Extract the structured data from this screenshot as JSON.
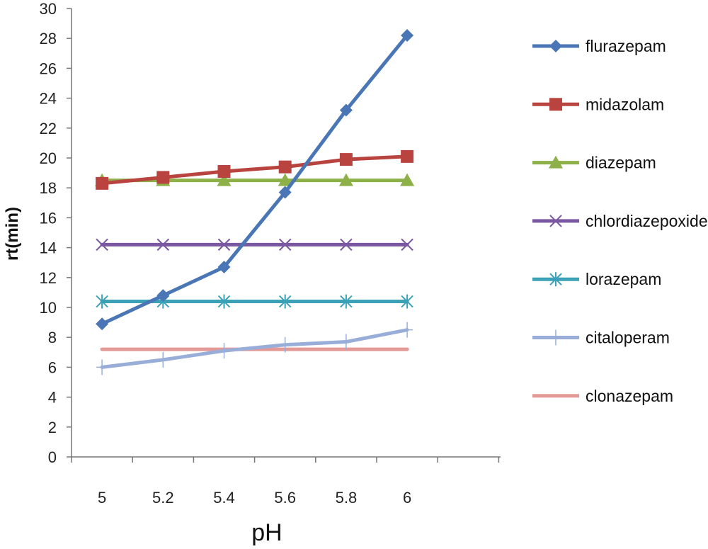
{
  "chart_data": {
    "type": "line",
    "xlabel": "pH",
    "ylabel": "rt(min)",
    "x": [
      5,
      5.2,
      5.4,
      5.6,
      5.8,
      6
    ],
    "ylim": [
      0,
      30
    ],
    "yticks": [
      0,
      2,
      4,
      6,
      8,
      10,
      12,
      14,
      16,
      18,
      20,
      22,
      24,
      26,
      28,
      30
    ],
    "grid": false,
    "legend_position": "right",
    "series": [
      {
        "name": "flurazepam",
        "color": "#4a76b5",
        "marker": "diamond",
        "values": [
          8.9,
          10.8,
          12.7,
          17.7,
          23.2,
          28.2
        ]
      },
      {
        "name": "midazolam",
        "color": "#b9433f",
        "marker": "square",
        "values": [
          18.3,
          18.7,
          19.1,
          19.4,
          19.9,
          20.1
        ]
      },
      {
        "name": "diazepam",
        "color": "#8db148",
        "marker": "triangle",
        "values": [
          18.5,
          18.5,
          18.5,
          18.5,
          18.5,
          18.5
        ]
      },
      {
        "name": "chlordiazepoxide",
        "color": "#7a57a1",
        "marker": "x",
        "values": [
          14.2,
          14.2,
          14.2,
          14.2,
          14.2,
          14.2
        ]
      },
      {
        "name": "lorazepam",
        "color": "#3aa1b6",
        "marker": "asterisk",
        "values": [
          10.4,
          10.4,
          10.4,
          10.4,
          10.4,
          10.4
        ]
      },
      {
        "name": "citaloperam",
        "color": "#98aed9",
        "marker": "plus",
        "values": [
          6.0,
          6.5,
          7.1,
          7.5,
          7.7,
          8.5
        ]
      },
      {
        "name": "clonazepam",
        "color": "#e39a96",
        "marker": "none",
        "values": [
          7.2,
          7.2,
          7.2,
          7.2,
          7.2,
          7.2
        ]
      }
    ]
  }
}
